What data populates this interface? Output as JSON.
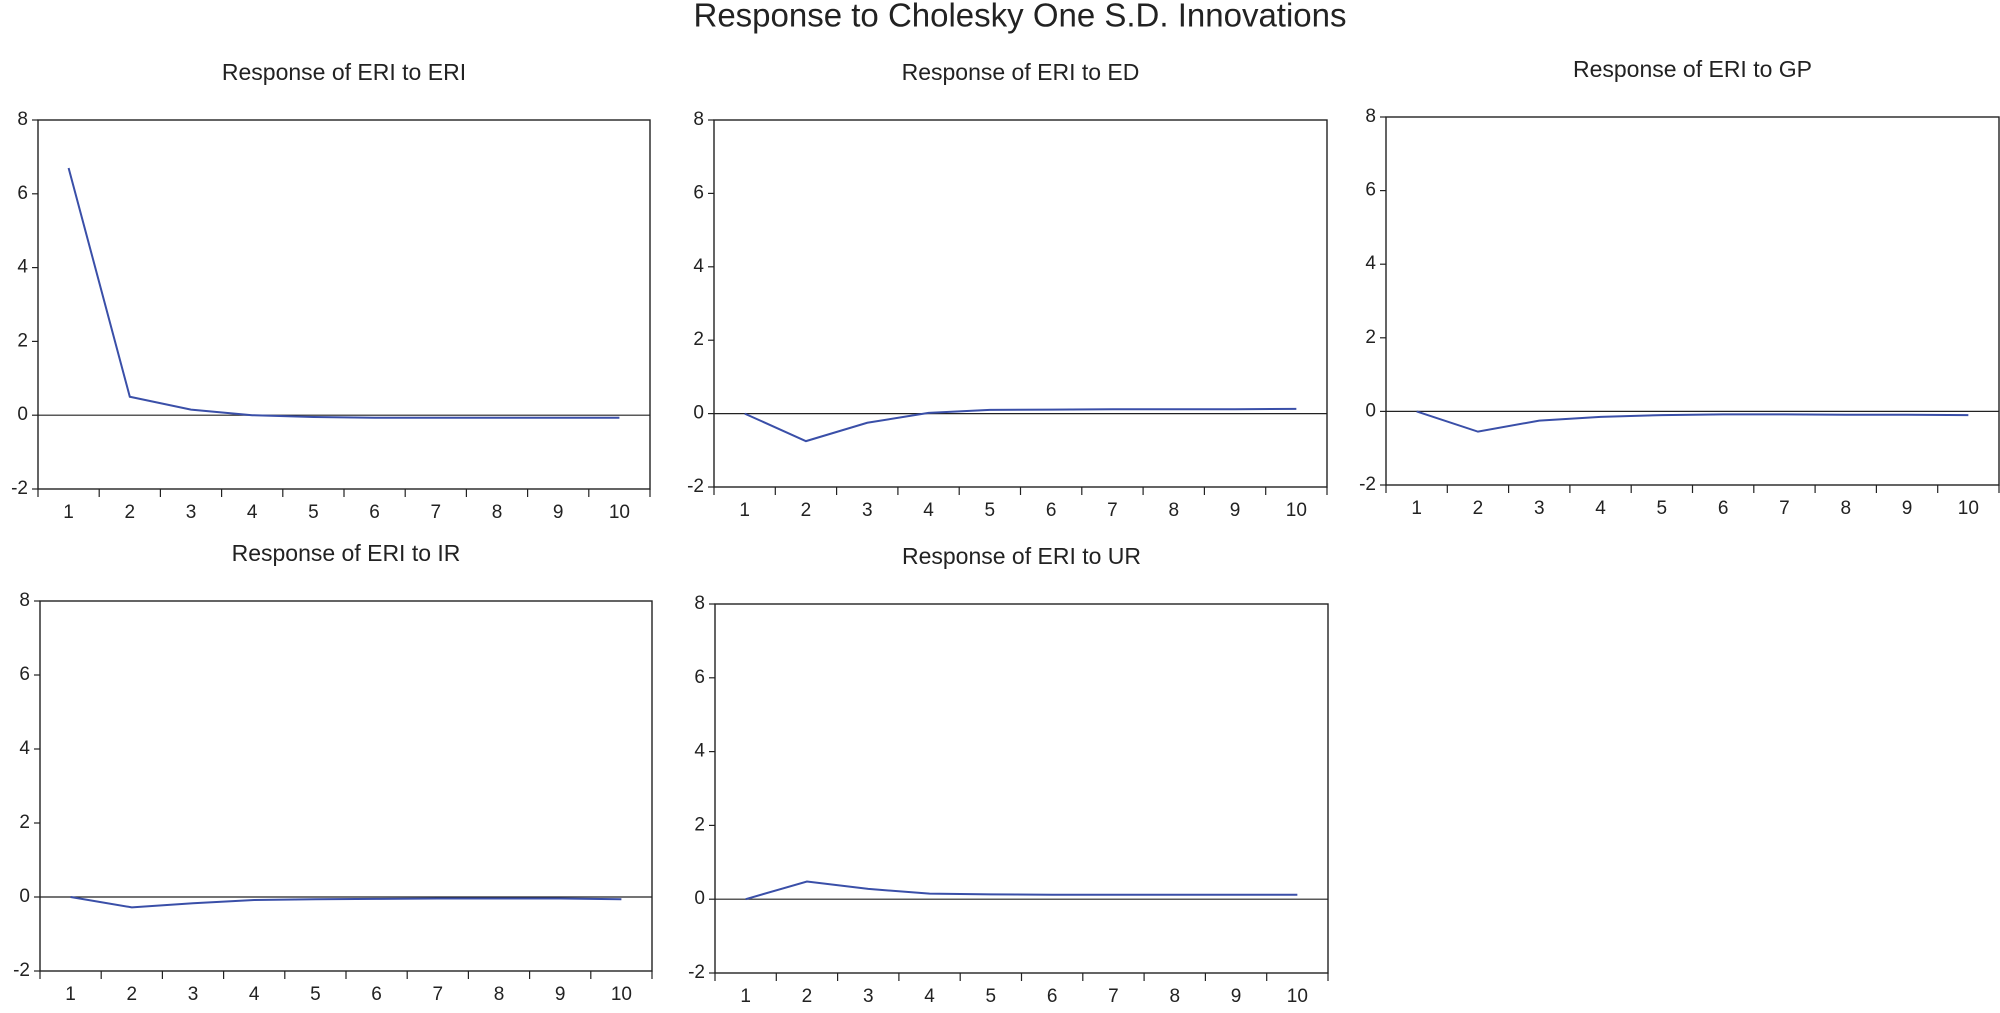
{
  "title": "Response to Cholesky One S.D. Innovations",
  "chart_data": [
    {
      "type": "line",
      "title": "Response of ERI to ERI",
      "categories": [
        "1",
        "2",
        "3",
        "4",
        "5",
        "6",
        "7",
        "8",
        "9",
        "10"
      ],
      "series": [
        {
          "color": "#3a4fa8",
          "values": [
            6.7,
            0.5,
            0.15,
            0.0,
            -0.05,
            -0.07,
            -0.07,
            -0.07,
            -0.07,
            -0.07
          ]
        }
      ],
      "ylim": [
        -2,
        8
      ],
      "yticks": [
        -2,
        0,
        2,
        4,
        6,
        8
      ],
      "hline": 0
    },
    {
      "type": "line",
      "title": "Response of ERI to ED",
      "categories": [
        "1",
        "2",
        "3",
        "4",
        "5",
        "6",
        "7",
        "8",
        "9",
        "10"
      ],
      "series": [
        {
          "color": "#3a4fa8",
          "values": [
            0,
            -0.75,
            -0.25,
            0.02,
            0.1,
            0.11,
            0.12,
            0.12,
            0.12,
            0.13
          ]
        }
      ],
      "ylim": [
        -2,
        8
      ],
      "yticks": [
        -2,
        0,
        2,
        4,
        6,
        8
      ],
      "hline": 0
    },
    {
      "type": "line",
      "title": "Response of ERI to GP",
      "categories": [
        "1",
        "2",
        "3",
        "4",
        "5",
        "6",
        "7",
        "8",
        "9",
        "10"
      ],
      "series": [
        {
          "color": "#3a4fa8",
          "values": [
            0,
            -0.55,
            -0.25,
            -0.15,
            -0.1,
            -0.08,
            -0.08,
            -0.09,
            -0.09,
            -0.1
          ]
        }
      ],
      "ylim": [
        -2,
        8
      ],
      "yticks": [
        -2,
        0,
        2,
        4,
        6,
        8
      ],
      "hline": 0
    },
    {
      "type": "line",
      "title": "Response of ERI to IR",
      "categories": [
        "1",
        "2",
        "3",
        "4",
        "5",
        "6",
        "7",
        "8",
        "9",
        "10"
      ],
      "series": [
        {
          "color": "#3a4fa8",
          "values": [
            0,
            -0.28,
            -0.17,
            -0.08,
            -0.06,
            -0.05,
            -0.04,
            -0.04,
            -0.04,
            -0.06
          ]
        }
      ],
      "ylim": [
        -2,
        8
      ],
      "yticks": [
        -2,
        0,
        2,
        4,
        6,
        8
      ],
      "hline": 0
    },
    {
      "type": "line",
      "title": "Response of ERI to UR",
      "categories": [
        "1",
        "2",
        "3",
        "4",
        "5",
        "6",
        "7",
        "8",
        "9",
        "10"
      ],
      "series": [
        {
          "color": "#3a4fa8",
          "values": [
            0,
            0.48,
            0.28,
            0.15,
            0.13,
            0.12,
            0.12,
            0.12,
            0.12,
            0.12
          ]
        }
      ],
      "ylim": [
        -2,
        8
      ],
      "yticks": [
        -2,
        0,
        2,
        4,
        6,
        8
      ],
      "hline": 0
    }
  ]
}
